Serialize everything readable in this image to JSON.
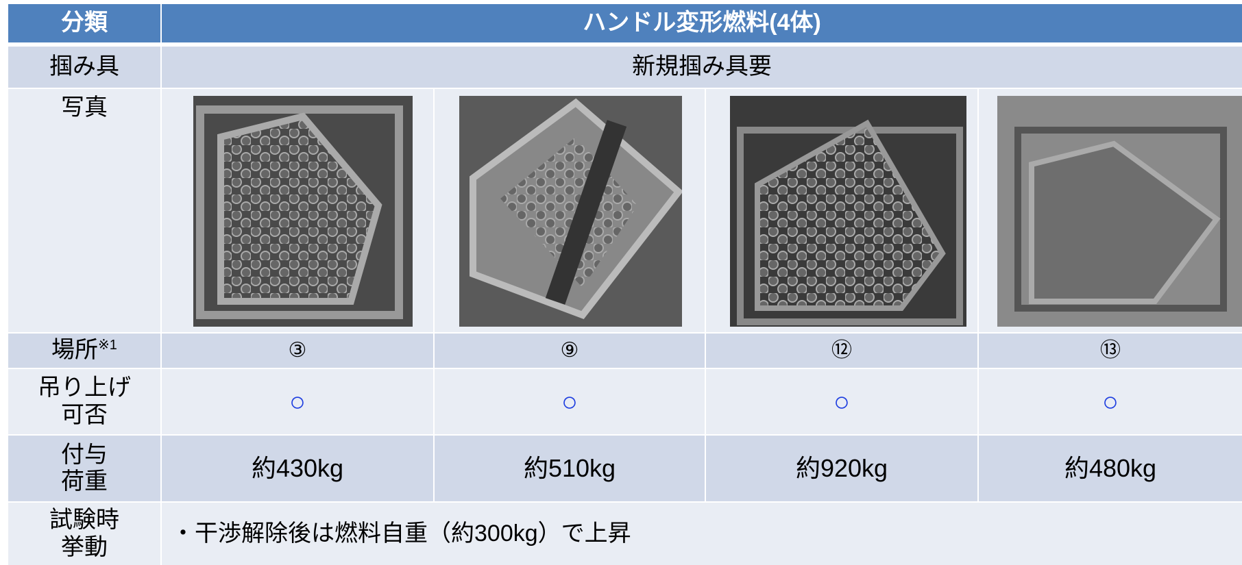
{
  "table": {
    "header": {
      "label": "分類",
      "title": "ハンドル変形燃料(4体)"
    },
    "grip": {
      "label": "掴み具",
      "value": "新規掴み具要"
    },
    "photo": {
      "label": "写真"
    },
    "location": {
      "label": "場所",
      "note": "※1",
      "values": [
        "③",
        "⑨",
        "⑫",
        "⑬"
      ]
    },
    "lift": {
      "label": [
        "吊り上げ",
        "可否"
      ],
      "values": [
        "○",
        "○",
        "○",
        "○"
      ]
    },
    "load": {
      "label": [
        "付与",
        "荷重"
      ],
      "values": [
        "約430kg",
        "約510kg",
        "約920kg",
        "約480kg"
      ]
    },
    "behavior": {
      "label": [
        "試験時",
        "挙動"
      ],
      "value": "・干渉解除後は燃料自重（約300kg）で上昇"
    }
  }
}
